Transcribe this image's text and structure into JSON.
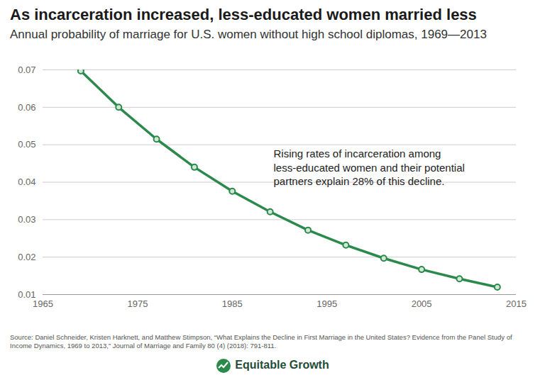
{
  "chart_data": {
    "type": "line",
    "title": "As incarceration increased, less-educated women married less",
    "subtitle": "Annual probability of marriage for U.S. women without high school diplomas, 1969—2013",
    "x": [
      1969,
      1973,
      1977,
      1981,
      1985,
      1989,
      1993,
      1997,
      2001,
      2005,
      2009,
      2013
    ],
    "values": [
      0.0697,
      0.06,
      0.0515,
      0.044,
      0.0376,
      0.0321,
      0.0272,
      0.0232,
      0.0197,
      0.0167,
      0.0142,
      0.012
    ],
    "color": "#2b8a4b",
    "marker": "circle",
    "line_style": "solid",
    "xlim": [
      1965,
      2015
    ],
    "xticks": [
      1965,
      1975,
      1985,
      1995,
      2005,
      2015
    ],
    "ylim": [
      0.01,
      0.07
    ],
    "yticks": [
      0.01,
      0.02,
      0.03,
      0.04,
      0.05,
      0.06,
      0.07
    ],
    "grid": true,
    "annotation": "Rising rates of incarceration among\nless-educated women and their potential\npartners explain 28% of this decline.",
    "source": "Source: Daniel Schneider, Kristen Harknett, and Matthew Stimpson, “What Explains the Decline in First Marriage in the United States? Evidence from the Panel Study of Income Dynamics, 1969 to 2013,” Journal of Marriage and Family 80 (4) (2018): 791-811.",
    "brand": "Equitable Growth"
  }
}
